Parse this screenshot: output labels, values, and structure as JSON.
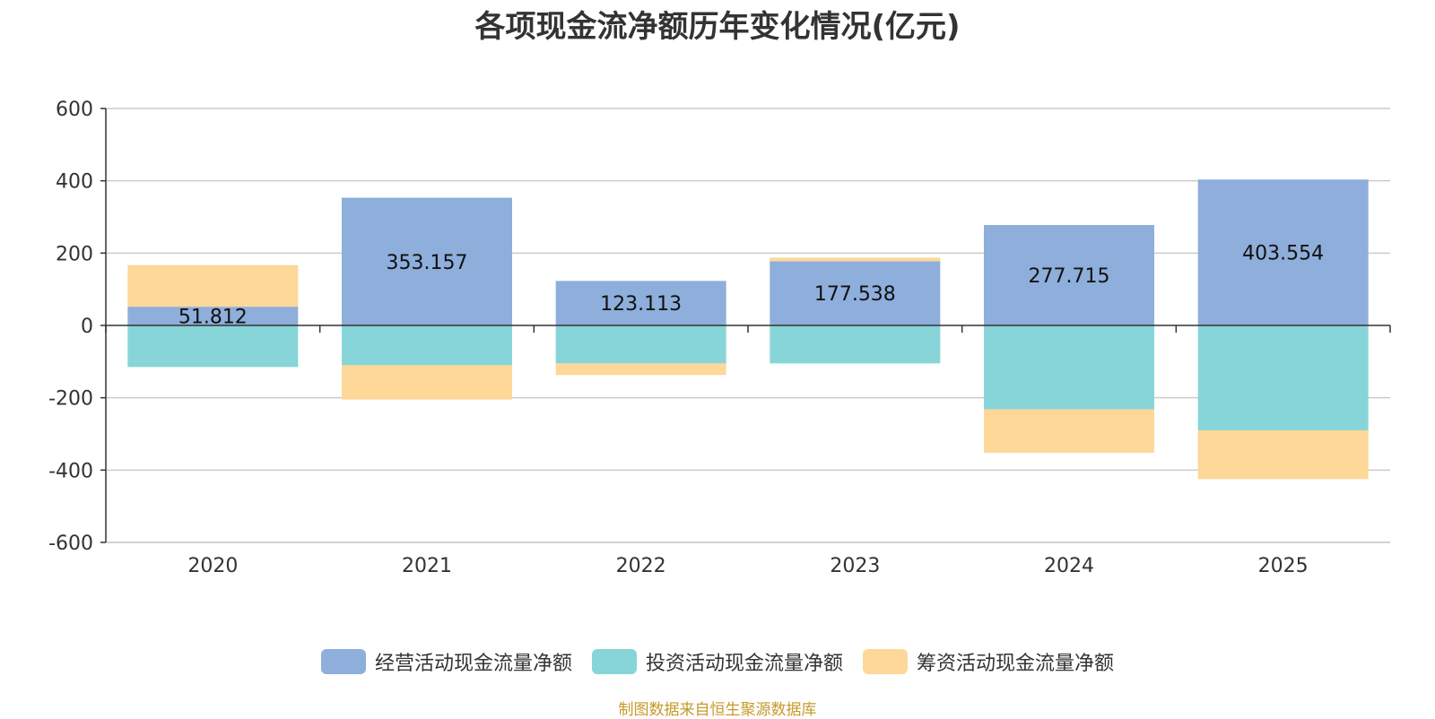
{
  "chart_data": {
    "type": "bar",
    "stacked": true,
    "title": "各项现金流净额历年变化情况(亿元)",
    "categories": [
      "2020",
      "2021",
      "2022",
      "2023",
      "2024",
      "2025"
    ],
    "ylim": [
      -600,
      600
    ],
    "yticks": [
      600,
      400,
      200,
      0,
      -200,
      -400,
      -600
    ],
    "grid": true,
    "legend_position": "bottom",
    "series": [
      {
        "name": "经营活动现金流量净额",
        "color": "#8eaedb",
        "values": [
          51.812,
          353.157,
          123.113,
          177.538,
          277.715,
          403.554
        ],
        "labels": [
          "51.812",
          "353.157",
          "123.113",
          "177.538",
          "277.715",
          "403.554"
        ]
      },
      {
        "name": "投资活动现金流量净额",
        "color": "#87d5d8",
        "values": [
          -115,
          -110,
          -105,
          -105,
          -232,
          -290
        ]
      },
      {
        "name": "筹资活动现金流量净额",
        "color": "#fdd898",
        "values": [
          115,
          -95,
          -32,
          10,
          -120,
          -135
        ]
      }
    ]
  },
  "footer": {
    "source": "制图数据来自恒生聚源数据库"
  }
}
